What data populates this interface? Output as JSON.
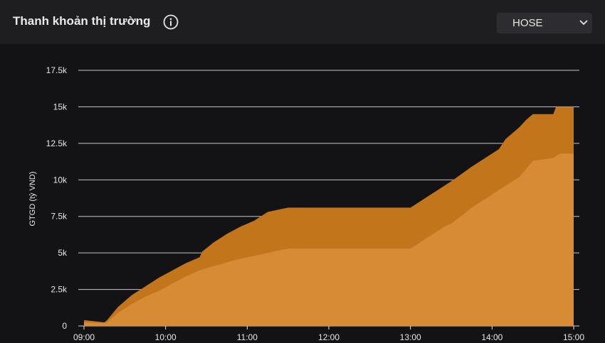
{
  "header": {
    "title": "Thanh khoản thị trường",
    "info_icon": "info-circle-icon",
    "exchange_select": {
      "value": "HOSE",
      "icon": "chevron-down-icon"
    }
  },
  "colors": {
    "background": "#131316",
    "header": "#1e1e21",
    "series_lower": "#d68b34",
    "series_upper": "#c2751b",
    "grid": "#e6e6e6"
  },
  "chart_data": {
    "type": "area",
    "ylabel": "GTGD (tỷ VND)",
    "ylim": [
      0,
      17500
    ],
    "yticks": [
      0,
      2500,
      5000,
      7500,
      10000,
      12500,
      15000,
      17500
    ],
    "ytick_labels": [
      "0",
      "2.5k",
      "5k",
      "7.5k",
      "10k",
      "12.5k",
      "15k",
      "17.5k"
    ],
    "xlim": [
      "09:00",
      "15:00"
    ],
    "xtick_labels": [
      "09:00",
      "10:00",
      "11:00",
      "12:00",
      "13:00",
      "14:00",
      "15:00"
    ],
    "grid": true,
    "series": [
      {
        "x": [
          "09:00",
          "09:15",
          "09:17",
          "09:25",
          "09:35",
          "09:45",
          "09:55",
          "10:05",
          "10:15",
          "10:25",
          "10:35",
          "10:45",
          "10:55",
          "11:05",
          "11:15",
          "11:25",
          "11:30",
          "11:45",
          "12:00",
          "12:15",
          "12:30",
          "12:45",
          "13:00",
          "13:15",
          "13:25",
          "13:30",
          "13:45",
          "14:00",
          "14:15",
          "14:20",
          "14:30",
          "14:45",
          "14:50",
          "15:00"
        ],
        "values": [
          250,
          200,
          250,
          900,
          1500,
          2000,
          2400,
          2900,
          3400,
          3800,
          4100,
          4350,
          4600,
          4800,
          5000,
          5200,
          5300,
          5300,
          5300,
          5300,
          5300,
          5300,
          5300,
          6200,
          6800,
          7000,
          8100,
          9000,
          9900,
          10200,
          11300,
          11500,
          11800,
          11800
        ]
      },
      {
        "x": [
          "09:00",
          "09:15",
          "09:17",
          "09:25",
          "09:35",
          "09:45",
          "09:55",
          "10:05",
          "10:15",
          "10:25",
          "10:27",
          "10:35",
          "10:45",
          "10:55",
          "11:05",
          "11:15",
          "11:25",
          "11:30",
          "11:45",
          "12:00",
          "12:15",
          "12:30",
          "12:45",
          "13:00",
          "13:15",
          "13:25",
          "13:30",
          "13:45",
          "14:00",
          "14:05",
          "14:10",
          "14:20",
          "14:25",
          "14:30",
          "14:45",
          "14:47",
          "15:00"
        ],
        "values": [
          400,
          250,
          400,
          1300,
          2100,
          2700,
          3300,
          3800,
          4300,
          4700,
          5100,
          5700,
          6300,
          6800,
          7200,
          7800,
          8000,
          8100,
          8100,
          8100,
          8100,
          8100,
          8100,
          8100,
          9000,
          9600,
          9900,
          10900,
          11800,
          12100,
          12800,
          13600,
          14100,
          14500,
          14500,
          15000,
          15000
        ]
      }
    ]
  }
}
